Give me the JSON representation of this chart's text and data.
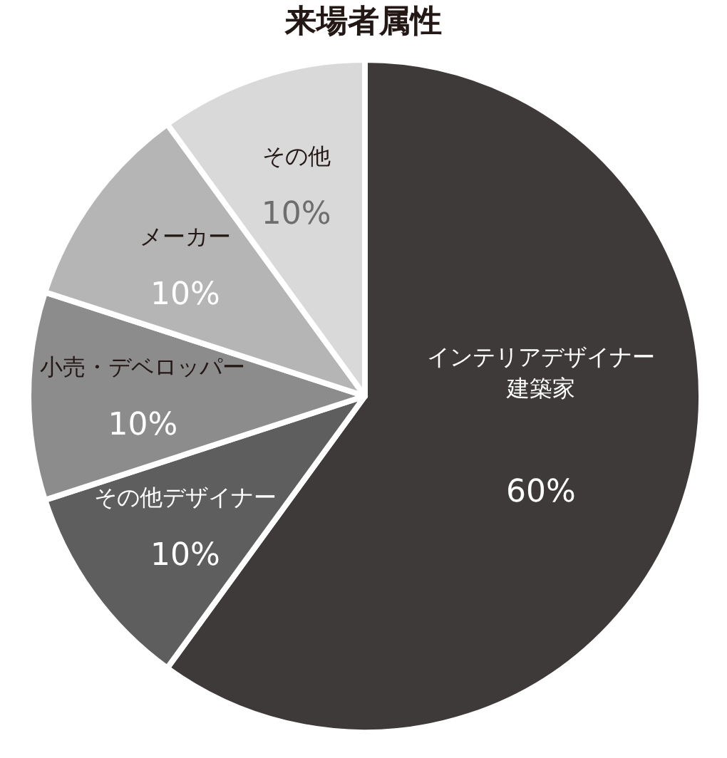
{
  "chart_data": {
    "type": "pie",
    "title": "来場者属性",
    "categories": [
      "インテリアデザイナー建築家",
      "その他デザイナー",
      "小売・デベロッパー",
      "メーカー",
      "その他"
    ],
    "values": [
      60,
      10,
      10,
      10,
      10
    ],
    "colors": [
      "#3e3a39",
      "#5e5e5e",
      "#8c8c8c",
      "#b5b5b5",
      "#d9d9d9"
    ],
    "value_labels": [
      "60%",
      "10%",
      "10%",
      "10%",
      "10%"
    ]
  }
}
